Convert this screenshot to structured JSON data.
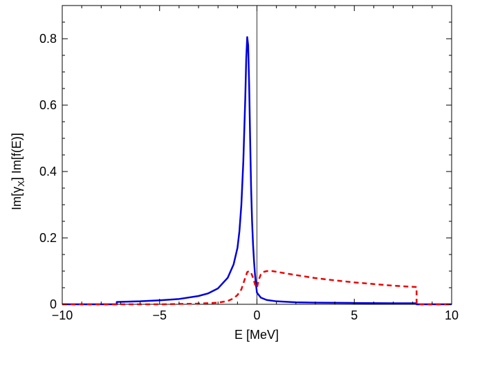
{
  "chart_data": {
    "type": "line",
    "xlabel": "E [MeV]",
    "ylabel": {
      "prefix": "Im[γ",
      "sub": "X",
      "suffix": "] Im[f(E)]"
    },
    "xlim": [
      -10,
      10
    ],
    "ylim": [
      0,
      0.9
    ],
    "x_ticks": [
      -10,
      -5,
      0,
      5,
      10
    ],
    "x_tick_labels": [
      "−10",
      "−5",
      "0",
      "5",
      "10"
    ],
    "y_ticks": [
      0,
      0.2,
      0.4,
      0.6,
      0.8
    ],
    "y_tick_labels": [
      "0",
      "0.2",
      "0.4",
      "0.6",
      "0.8"
    ],
    "grid": false,
    "vertical_reference_line_x": 0,
    "series": [
      {
        "style": "solid",
        "color": "#0000dd",
        "x": [
          -10,
          -7.2,
          -7.2,
          -6,
          -5,
          -4,
          -3,
          -2.5,
          -2,
          -1.5,
          -1.2,
          -1.0,
          -0.9,
          -0.8,
          -0.7,
          -0.6,
          -0.55,
          -0.5,
          -0.45,
          -0.4,
          -0.35,
          -0.3,
          -0.25,
          -0.2,
          -0.15,
          -0.1,
          -0.05,
          0,
          0.2,
          0.5,
          1,
          2,
          3,
          5,
          7,
          8.2,
          8.2,
          10
        ],
        "y": [
          0,
          0,
          0.007,
          0.009,
          0.012,
          0.016,
          0.025,
          0.033,
          0.048,
          0.08,
          0.12,
          0.17,
          0.22,
          0.3,
          0.43,
          0.62,
          0.74,
          0.805,
          0.78,
          0.66,
          0.5,
          0.35,
          0.25,
          0.18,
          0.13,
          0.09,
          0.06,
          0.035,
          0.02,
          0.013,
          0.009,
          0.006,
          0.005,
          0.004,
          0.003,
          0.003,
          0,
          0
        ]
      },
      {
        "style": "dashed",
        "color": "#ee0000",
        "x": [
          -10,
          -5,
          -3,
          -2,
          -1.5,
          -1.2,
          -1.0,
          -0.8,
          -0.6,
          -0.5,
          -0.4,
          -0.3,
          -0.2,
          -0.1,
          0,
          0.1,
          0.2,
          0.3,
          0.5,
          0.8,
          1,
          2,
          3,
          4,
          5,
          6,
          7,
          8.2,
          8.2,
          10
        ],
        "y": [
          0,
          0,
          0.002,
          0.005,
          0.01,
          0.018,
          0.028,
          0.045,
          0.08,
          0.097,
          0.1,
          0.095,
          0.08,
          0.06,
          0.05,
          0.075,
          0.09,
          0.097,
          0.1,
          0.1,
          0.098,
          0.088,
          0.079,
          0.072,
          0.066,
          0.061,
          0.056,
          0.052,
          0,
          0
        ]
      }
    ]
  }
}
